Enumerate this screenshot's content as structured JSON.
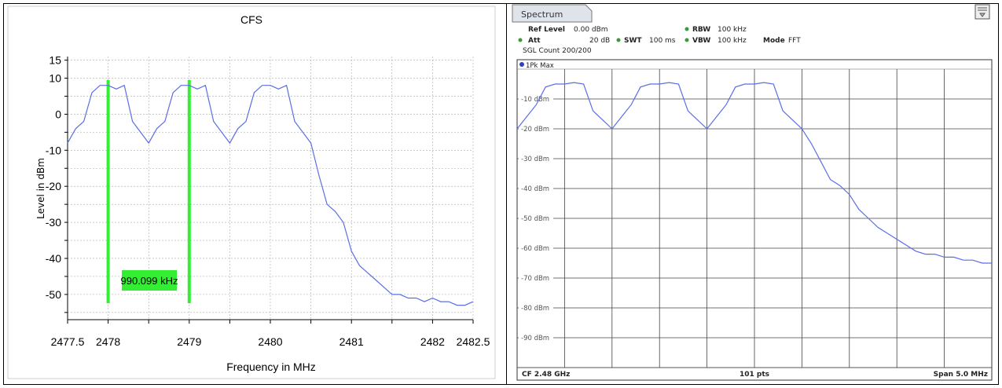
{
  "left_panel": {
    "chart_data": {
      "type": "line",
      "title": "CFS",
      "xlabel": "Frequency in MHz",
      "ylabel": "Level in dBm",
      "xlim": [
        2477.5,
        2482.5
      ],
      "ylim": [
        -57,
        16
      ],
      "x_ticks": [
        2477.5,
        2478,
        2479,
        2480,
        2481,
        2482,
        2482.5
      ],
      "y_ticks": [
        15,
        10,
        0,
        -10,
        -20,
        -30,
        -40,
        -50
      ],
      "grid": true,
      "series": [
        {
          "color": "#5b6ee8",
          "x": [
            2477.5,
            2477.6,
            2477.7,
            2477.8,
            2477.9,
            2478.0,
            2478.1,
            2478.2,
            2478.3,
            2478.4,
            2478.5,
            2478.6,
            2478.7,
            2478.8,
            2478.9,
            2479.0,
            2479.1,
            2479.2,
            2479.3,
            2479.4,
            2479.5,
            2479.6,
            2479.7,
            2479.8,
            2479.9,
            2480.0,
            2480.1,
            2480.2,
            2480.3,
            2480.4,
            2480.5,
            2480.6,
            2480.7,
            2480.8,
            2480.9,
            2481.0,
            2481.1,
            2481.2,
            2481.3,
            2481.4,
            2481.5,
            2481.6,
            2481.7,
            2481.8,
            2481.9,
            2482.0,
            2482.1,
            2482.2,
            2482.3,
            2482.4,
            2482.5
          ],
          "y": [
            -8,
            -4,
            -2,
            6,
            8,
            8,
            7,
            8,
            -2,
            -5,
            -8,
            -4,
            -2,
            6,
            8,
            8,
            7,
            8,
            -2,
            -5,
            -8,
            -4,
            -2,
            6,
            8,
            8,
            7,
            8,
            -2,
            -5,
            -8,
            -17,
            -25,
            -27,
            -30,
            -38,
            -42,
            -44,
            -46,
            -48,
            -50,
            -50,
            -51,
            -51,
            -52,
            -51,
            -52,
            -52,
            -53,
            -53,
            -52
          ]
        }
      ],
      "markers": [
        {
          "x": 2478.0,
          "color": "#33ee33"
        },
        {
          "x": 2479.0,
          "color": "#33ee33"
        }
      ],
      "annotations": [
        {
          "text": "990.099 kHz",
          "background": "#33ee33"
        }
      ]
    }
  },
  "right_panel": {
    "tab_label": "Spectrum",
    "settings": {
      "ref_level_label": "Ref Level",
      "ref_level_value": "0.00 dBm",
      "att_label": "Att",
      "att_value": "20 dB",
      "swt_label": "SWT",
      "swt_value": "100 ms",
      "rbw_label": "RBW",
      "rbw_value": "100 kHz",
      "vbw_label": "VBW",
      "vbw_value": "100 kHz",
      "mode_label": "Mode",
      "mode_value": "FFT",
      "sgl_count": "SGL Count 200/200"
    },
    "trace_label": "1Pk Max",
    "footer": {
      "center_freq": "CF 2.48 GHz",
      "points": "101 pts",
      "span": "Span 5.0 MHz"
    },
    "chart_data": {
      "type": "line",
      "xlim": [
        2477.5,
        2482.5
      ],
      "ylim": [
        -100,
        0
      ],
      "y_tick_labels": [
        "-10 dBm",
        "-20 dBm",
        "-30 dBm",
        "-40 dBm",
        "-50 dBm",
        "-60 dBm",
        "-70 dBm",
        "-80 dBm",
        "-90 dBm"
      ],
      "y_ticks": [
        -10,
        -20,
        -30,
        -40,
        -50,
        -60,
        -70,
        -80,
        -90
      ],
      "grid": true,
      "series": [
        {
          "name": "1Pk Max",
          "color": "#5b6ee8",
          "x": [
            2477.5,
            2477.6,
            2477.7,
            2477.8,
            2477.9,
            2478.0,
            2478.1,
            2478.2,
            2478.3,
            2478.4,
            2478.5,
            2478.6,
            2478.7,
            2478.8,
            2478.9,
            2479.0,
            2479.1,
            2479.2,
            2479.3,
            2479.4,
            2479.5,
            2479.6,
            2479.7,
            2479.8,
            2479.9,
            2480.0,
            2480.1,
            2480.2,
            2480.3,
            2480.4,
            2480.5,
            2480.6,
            2480.7,
            2480.8,
            2480.9,
            2481.0,
            2481.1,
            2481.2,
            2481.3,
            2481.4,
            2481.5,
            2481.6,
            2481.7,
            2481.8,
            2481.9,
            2482.0,
            2482.1,
            2482.2,
            2482.3,
            2482.4,
            2482.5
          ],
          "y": [
            -20,
            -16,
            -12,
            -6,
            -5,
            -5,
            -4.5,
            -5,
            -14,
            -17,
            -20,
            -16,
            -12,
            -6,
            -5,
            -5,
            -4.5,
            -5,
            -14,
            -17,
            -20,
            -16,
            -12,
            -6,
            -5,
            -5,
            -4.5,
            -5,
            -14,
            -17,
            -20,
            -25,
            -31,
            -37,
            -39,
            -42,
            -47,
            -50,
            -53,
            -55,
            -57,
            -59,
            -61,
            -62,
            -62,
            -63,
            -63,
            -64,
            -64,
            -65,
            -65
          ]
        }
      ]
    }
  }
}
